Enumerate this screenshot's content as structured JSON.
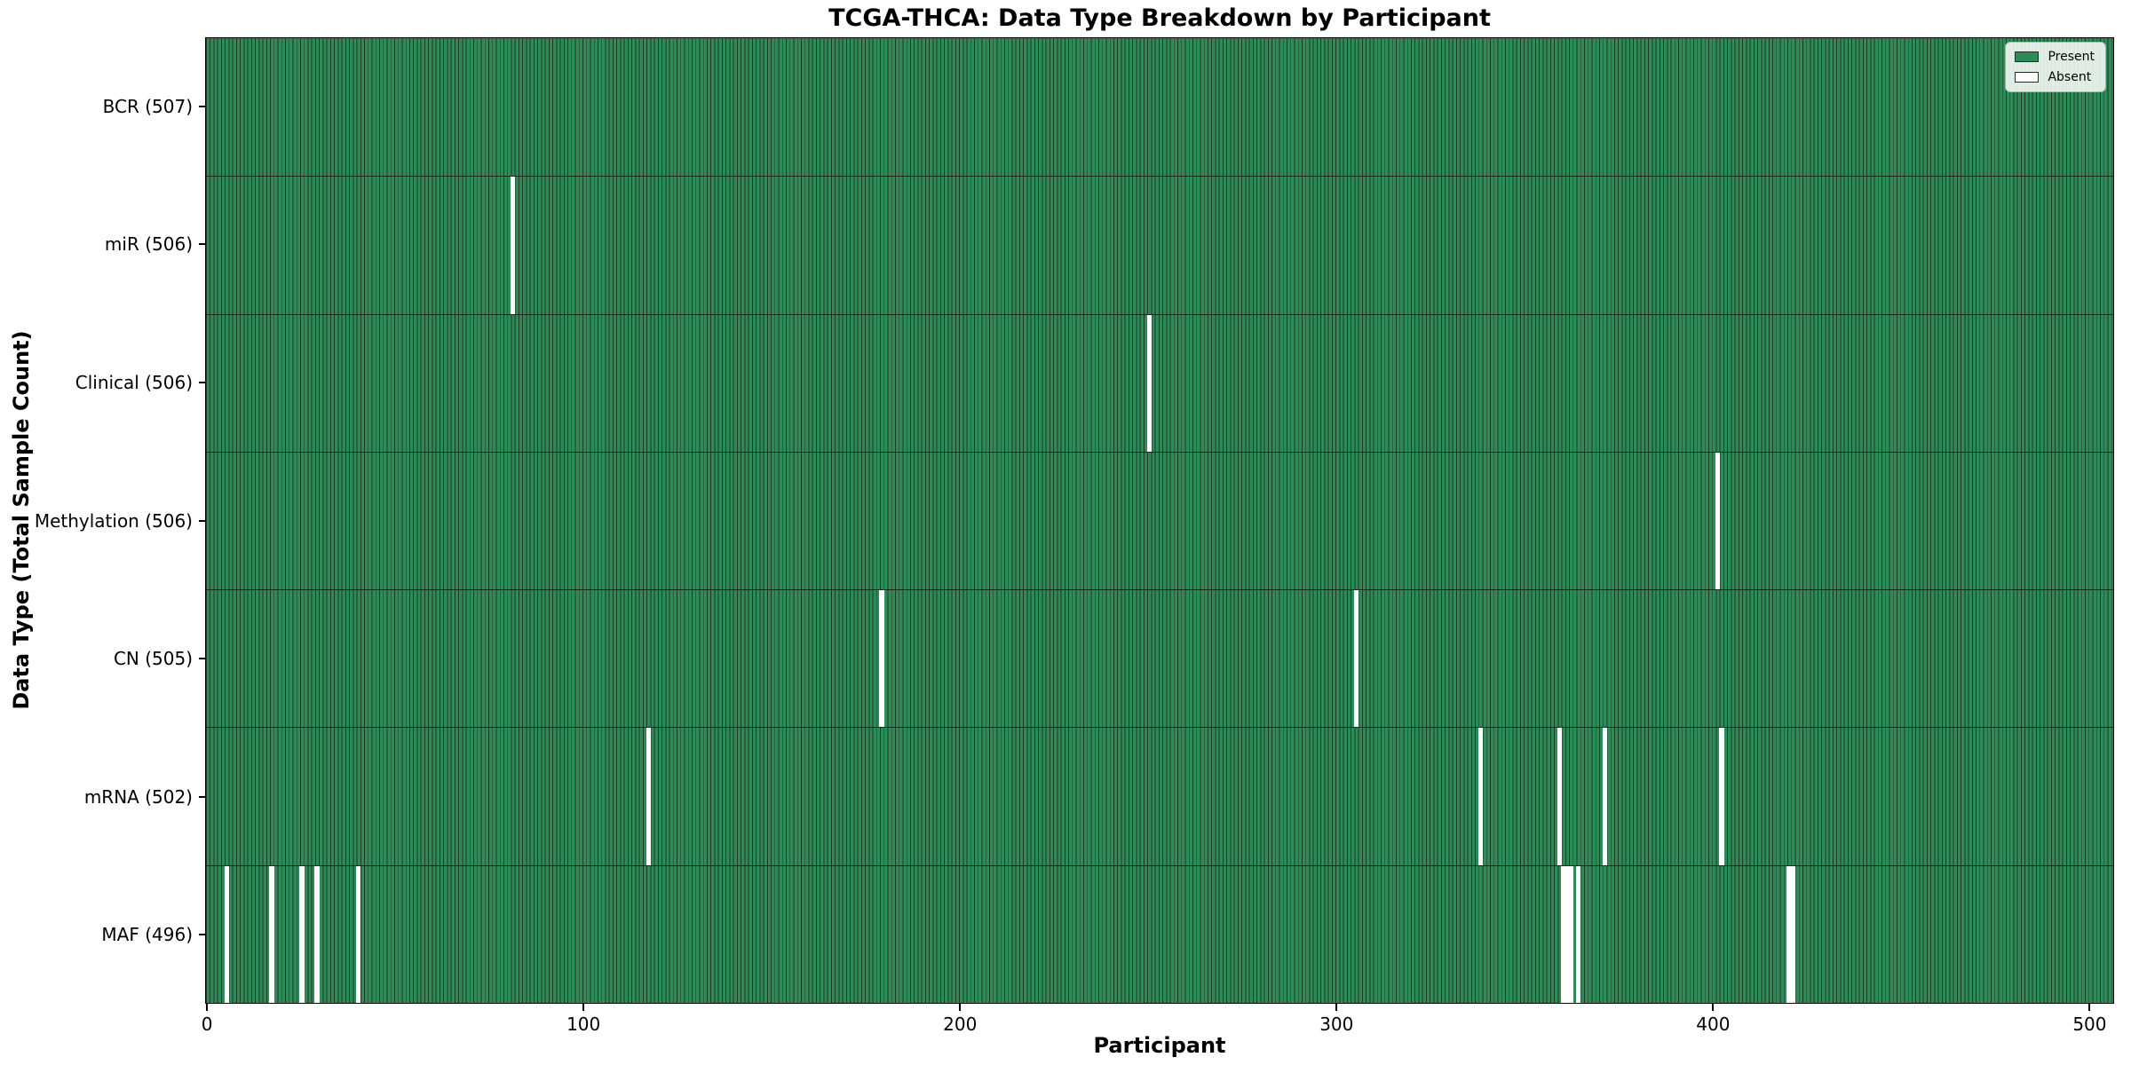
{
  "chart_data": {
    "type": "heatmap",
    "title": "TCGA-THCA: Data Type Breakdown by Participant",
    "xlabel": "Participant",
    "ylabel": "Data Type (Total Sample Count)",
    "n_participants": 507,
    "xlim": [
      -0.5,
      506.5
    ],
    "x_ticks": [
      0,
      100,
      200,
      300,
      400,
      500
    ],
    "grid": false,
    "legend_position": "upper right",
    "legend": {
      "present_label": "Present",
      "absent_label": "Absent"
    },
    "colors": {
      "present": "#2e8b57",
      "absent": "#ffffff",
      "bar_edge": "#1d3a29"
    },
    "rows": [
      {
        "data_type": "BCR",
        "label": "BCR (507)",
        "total": 507,
        "absent_participants": []
      },
      {
        "data_type": "miR",
        "label": "miR (506)",
        "total": 506,
        "absent_participants": [
          81
        ]
      },
      {
        "data_type": "Clinical",
        "label": "Clinical (506)",
        "total": 506,
        "absent_participants": [
          250
        ]
      },
      {
        "data_type": "Methylation",
        "label": "Methylation (506)",
        "total": 506,
        "absent_participants": [
          401
        ]
      },
      {
        "data_type": "CN",
        "label": "CN (505)",
        "total": 505,
        "absent_participants": [
          179,
          305
        ]
      },
      {
        "data_type": "mRNA",
        "label": "mRNA (502)",
        "total": 502,
        "absent_participants": [
          117,
          338,
          359,
          371,
          402
        ]
      },
      {
        "data_type": "MAF",
        "label": "MAF (496)",
        "total": 496,
        "absent_participants": [
          5,
          17,
          25,
          29,
          40,
          360,
          361,
          362,
          364,
          420,
          421
        ]
      }
    ]
  }
}
